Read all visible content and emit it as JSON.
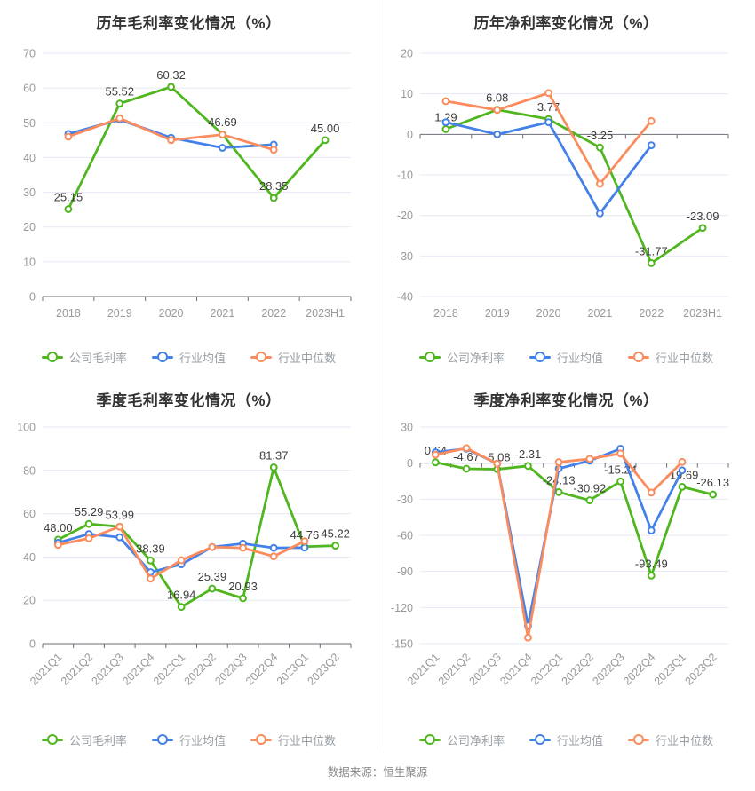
{
  "page": {
    "footer": "数据来源：恒生聚源"
  },
  "colors": {
    "company": "#4fb61e",
    "average": "#4381e8",
    "median": "#fb8c5e",
    "grid": "#e4eaf4",
    "axis": "#6b6f77"
  },
  "chart_data": [
    {
      "type": "line",
      "title": "历年毛利率变化情况（%）",
      "categories": [
        "2018",
        "2019",
        "2020",
        "2021",
        "2022",
        "2023H1"
      ],
      "y_axis": {
        "min": 0,
        "max": 70,
        "step": 10
      },
      "rotate_x_labels": false,
      "legend_position": "bottom",
      "grid": true,
      "series": [
        {
          "key": "company",
          "name": "公司毛利率",
          "values": [
            25.15,
            55.52,
            60.32,
            46.69,
            28.35,
            45.0
          ],
          "labels": [
            "25.15",
            "55.52",
            "60.32",
            "46.69",
            "28.35",
            "45.00"
          ]
        },
        {
          "key": "average",
          "name": "行业均值",
          "values": [
            46.8,
            50.9,
            45.7,
            42.8,
            43.7,
            null
          ]
        },
        {
          "key": "median",
          "name": "行业中位数",
          "values": [
            46.0,
            51.3,
            45.0,
            46.6,
            42.2,
            null
          ]
        }
      ]
    },
    {
      "type": "line",
      "title": "历年净利率变化情况（%）",
      "categories": [
        "2018",
        "2019",
        "2020",
        "2021",
        "2022",
        "2023H1"
      ],
      "y_axis": {
        "min": -40,
        "max": 20,
        "step": 10
      },
      "rotate_x_labels": false,
      "legend_position": "bottom",
      "grid": true,
      "series": [
        {
          "key": "company",
          "name": "公司净利率",
          "values": [
            1.29,
            6.08,
            3.77,
            -3.25,
            -31.77,
            -23.09
          ],
          "labels": [
            "1.29",
            "6.08",
            "3.77",
            "-3.25",
            "-31.77",
            "-23.09"
          ]
        },
        {
          "key": "average",
          "name": "行业均值",
          "values": [
            3.0,
            0.0,
            3.0,
            -19.5,
            -2.7,
            null
          ]
        },
        {
          "key": "median",
          "name": "行业中位数",
          "values": [
            8.2,
            6.0,
            10.2,
            -12.2,
            3.3,
            null
          ]
        }
      ]
    },
    {
      "type": "line",
      "title": "季度毛利率变化情况（%）",
      "categories": [
        "2021Q1",
        "2021Q2",
        "2021Q3",
        "2021Q4",
        "2022Q1",
        "2022Q2",
        "2022Q3",
        "2022Q4",
        "2023Q1",
        "2023Q2"
      ],
      "y_axis": {
        "min": 0,
        "max": 100,
        "step": 20
      },
      "rotate_x_labels": true,
      "legend_position": "bottom",
      "grid": true,
      "series": [
        {
          "key": "company",
          "name": "公司毛利率",
          "values": [
            48.0,
            55.29,
            53.99,
            38.39,
            16.94,
            25.39,
            20.93,
            81.37,
            44.76,
            45.22
          ],
          "labels": [
            "48.00",
            "55.29",
            "53.99",
            "38.39",
            "16.94",
            "25.39",
            "20.93",
            "81.37",
            "44.76",
            "45.22"
          ]
        },
        {
          "key": "average",
          "name": "行业均值",
          "values": [
            46.6,
            50.6,
            49.1,
            33.0,
            36.6,
            44.6,
            46.2,
            44.2,
            44.3,
            null
          ]
        },
        {
          "key": "median",
          "name": "行业中位数",
          "values": [
            45.6,
            48.6,
            54.0,
            30.0,
            38.5,
            44.6,
            44.2,
            40.3,
            47.3,
            null
          ]
        }
      ]
    },
    {
      "type": "line",
      "title": "季度净利率变化情况（%）",
      "categories": [
        "2021Q1",
        "2021Q2",
        "2021Q3",
        "2021Q4",
        "2022Q1",
        "2022Q2",
        "2022Q3",
        "2022Q4",
        "2023Q1",
        "2023Q2"
      ],
      "y_axis": {
        "min": -150,
        "max": 30,
        "step": 30
      },
      "rotate_x_labels": true,
      "legend_position": "bottom",
      "grid": true,
      "series": [
        {
          "key": "company",
          "name": "公司净利率",
          "values": [
            0.64,
            -4.67,
            -5.08,
            -2.31,
            -24.13,
            -30.92,
            -15.24,
            -93.49,
            -19.69,
            -26.13
          ],
          "labels": [
            "0.64",
            "-4.67",
            "-5.08",
            "-2.31",
            "-24.13",
            "-30.92",
            "-15.24",
            "-93.49",
            "-19.69",
            "-26.13"
          ]
        },
        {
          "key": "average",
          "name": "行业均值",
          "values": [
            9.0,
            12.0,
            -0.5,
            -135.0,
            -4.5,
            2.0,
            12.0,
            -56.0,
            -6.0,
            null
          ]
        },
        {
          "key": "median",
          "name": "行业中位数",
          "values": [
            7.0,
            12.5,
            -0.5,
            -145.0,
            0.8,
            3.5,
            8.0,
            -24.5,
            1.0,
            null
          ]
        }
      ]
    }
  ]
}
